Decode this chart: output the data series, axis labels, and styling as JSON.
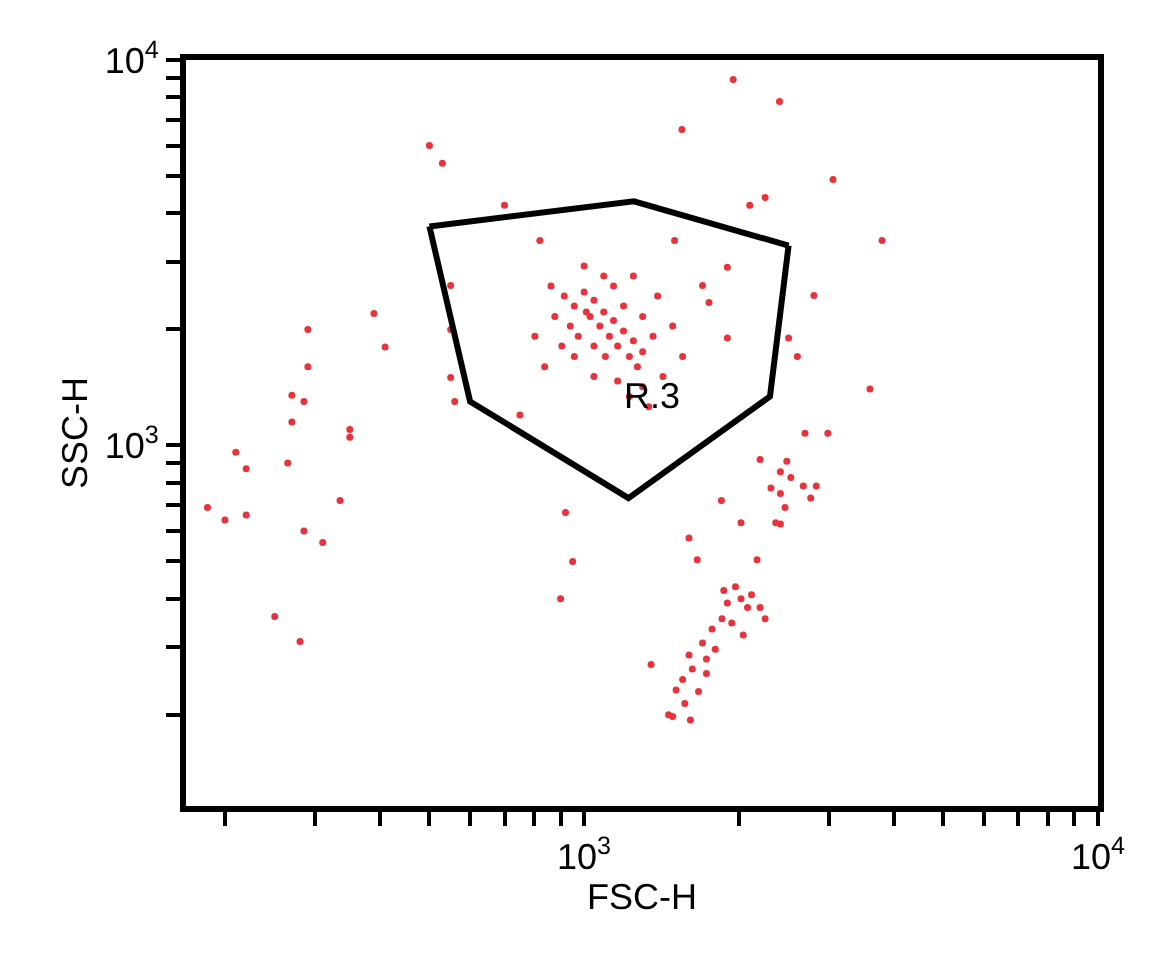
{
  "chart_data": {
    "type": "scatter",
    "xlabel": "FSC-H",
    "ylabel": "SSC-H",
    "log": "xy",
    "grid": false,
    "marker": "circle",
    "xlim": [
      168,
      10000
    ],
    "ylim": [
      116,
      10000
    ],
    "xticks": [
      {
        "value": 200,
        "label": null
      },
      {
        "value": 300,
        "label": null
      },
      {
        "value": 400,
        "label": null
      },
      {
        "value": 500,
        "label": null
      },
      {
        "value": 600,
        "label": null
      },
      {
        "value": 700,
        "label": null
      },
      {
        "value": 800,
        "label": null
      },
      {
        "value": 900,
        "label": null
      },
      {
        "value": 1000,
        "label": "10$^{3}$"
      },
      {
        "value": 2000,
        "label": null
      },
      {
        "value": 3000,
        "label": null
      },
      {
        "value": 4000,
        "label": null
      },
      {
        "value": 5000,
        "label": null
      },
      {
        "value": 6000,
        "label": null
      },
      {
        "value": 7000,
        "label": null
      },
      {
        "value": 8000,
        "label": null
      },
      {
        "value": 9000,
        "label": null
      },
      {
        "value": 10000,
        "label": "10$^{4}$"
      }
    ],
    "yticks": [
      {
        "value": 200,
        "label": null
      },
      {
        "value": 300,
        "label": null
      },
      {
        "value": 400,
        "label": null
      },
      {
        "value": 500,
        "label": null
      },
      {
        "value": 600,
        "label": null
      },
      {
        "value": 700,
        "label": null
      },
      {
        "value": 800,
        "label": null
      },
      {
        "value": 900,
        "label": null
      },
      {
        "value": 1000,
        "label": "10$^{3}$"
      },
      {
        "value": 2000,
        "label": null
      },
      {
        "value": 3000,
        "label": null
      },
      {
        "value": 4000,
        "label": null
      },
      {
        "value": 5000,
        "label": null
      },
      {
        "value": 6000,
        "label": null
      },
      {
        "value": 7000,
        "label": null
      },
      {
        "value": 8000,
        "label": null
      },
      {
        "value": 9000,
        "label": null
      },
      {
        "value": 10000,
        "label": "10$^{4}$"
      }
    ],
    "annotations": [
      {
        "text": "R.3",
        "x": 1360,
        "y": 1340
      }
    ],
    "series": [
      {
        "type": "scatter",
        "color": "#e8323c",
        "x": [
          500,
          530,
          700,
          820,
          550,
          550,
          390,
          410,
          290,
          290,
          550,
          560,
          750,
          270,
          285,
          270,
          350,
          350,
          210,
          220,
          265,
          185,
          200,
          220,
          285,
          310,
          335,
          250,
          280,
          920,
          950,
          900,
          1950,
          2400,
          1550,
          3050,
          2100,
          2250,
          3800,
          2800,
          2500,
          2600,
          3600,
          1900,
          1750,
          1900,
          1700,
          1500,
          915,
          957,
          1000,
          1027,
          1045,
          1073,
          1092,
          1120,
          1141,
          1162,
          1193,
          1225,
          1247,
          1270,
          1300,
          940,
          974,
          1010,
          1045,
          1100,
          877,
          862,
          905,
          1141,
          1193,
          1300,
          1362,
          1390,
          802,
          838,
          1045,
          1162,
          1300,
          1000,
          1092,
          1247,
          1487,
          1555,
          1424,
          957,
          1225,
          1336,
          2200,
          2410,
          2480,
          2310,
          2410,
          2525,
          2670,
          2830,
          2760,
          2460,
          2690,
          2980,
          1850,
          2020,
          2410,
          2360,
          1600,
          1660,
          2170,
          1970,
          1900,
          2020,
          2080,
          1855,
          1774,
          1938,
          1700,
          1730,
          1624,
          1555,
          1510,
          1570,
          1487,
          1350,
          2200,
          1730,
          1800,
          1600,
          1870,
          2117,
          2040,
          2250,
          1610,
          1460,
          1670
        ],
        "values": [
          6000,
          5400,
          4200,
          3400,
          2600,
          2000,
          2200,
          1800,
          2000,
          1600,
          1500,
          1300,
          1200,
          1350,
          1300,
          1150,
          1100,
          1050,
          960,
          870,
          900,
          690,
          640,
          660,
          600,
          560,
          720,
          360,
          310,
          670,
          500,
          400,
          8900,
          7800,
          6600,
          4900,
          4200,
          4400,
          3400,
          2450,
          1900,
          1700,
          1400,
          2900,
          2350,
          1900,
          2600,
          3400,
          2440,
          2300,
          2500,
          2160,
          2380,
          2040,
          2220,
          1920,
          2110,
          1810,
          1980,
          1700,
          1870,
          1600,
          1750,
          2040,
          1920,
          2220,
          1810,
          1700,
          2160,
          2590,
          1810,
          2590,
          2300,
          2160,
          1920,
          2440,
          1920,
          1600,
          1510,
          1470,
          1420,
          2920,
          2750,
          2750,
          2040,
          1700,
          1510,
          1700,
          1340,
          1260,
          920,
          855,
          910,
          775,
          750,
          825,
          785,
          785,
          730,
          690,
          1075,
          1075,
          720,
          630,
          625,
          630,
          575,
          505,
          505,
          430,
          390,
          400,
          380,
          355,
          334,
          346,
          307,
          279,
          263,
          247,
          232,
          214,
          198,
          270,
          380,
          256,
          296,
          286,
          420,
          410,
          322,
          355,
          194,
          200,
          230
        ]
      },
      {
        "type": "line",
        "marker": "none",
        "color": "#000000",
        "x": [
          500,
          1250,
          2500
        ],
        "values": [
          3700,
          4300,
          3300
        ]
      },
      {
        "type": "line",
        "marker": "none",
        "color": "#000000",
        "x": [
          500,
          600,
          1220,
          2300,
          2500
        ],
        "values": [
          3700,
          1300,
          730,
          1340,
          3300
        ]
      }
    ]
  }
}
